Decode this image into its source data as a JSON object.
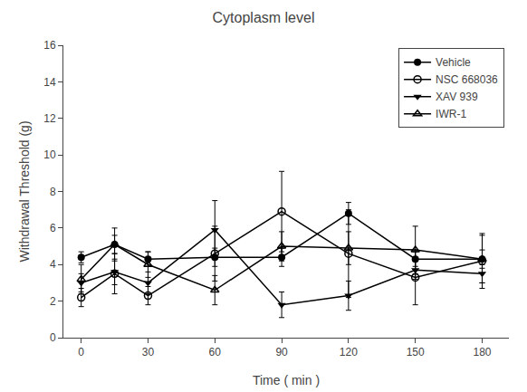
{
  "chart_data": {
    "type": "line",
    "title": "Cytoplasm level",
    "x_label": "Time ( min )",
    "y_label": "Withdrawal Threshold (g)",
    "x": [
      0,
      15,
      30,
      60,
      90,
      120,
      150,
      180
    ],
    "series": [
      {
        "name": "Vehicle",
        "color": "#000000",
        "marker": "circle",
        "values": [
          4.4,
          5.1,
          4.3,
          4.4,
          4.4,
          6.8,
          4.3,
          4.3
        ],
        "errors": [
          0.3,
          0.5,
          0.4,
          0.5,
          0.5,
          0.6,
          0.4,
          0.5
        ]
      },
      {
        "name": "NSC 668036",
        "color": "#000000",
        "marker": "circle-open",
        "values": [
          2.2,
          3.5,
          2.3,
          4.6,
          6.9,
          4.6,
          3.3,
          4.2
        ],
        "errors": [
          0.5,
          1.1,
          0.5,
          1.5,
          2.2,
          2.4,
          1.5,
          1.5
        ]
      },
      {
        "name": "XAV 939",
        "color": "#000000",
        "marker": "triangle-down",
        "values": [
          3.0,
          3.6,
          3.0,
          5.9,
          1.8,
          2.3,
          3.7,
          3.5
        ],
        "errors": [
          0.5,
          0.7,
          0.6,
          1.6,
          0.7,
          0.8,
          0.5,
          0.5
        ]
      },
      {
        "name": "IWR-1",
        "color": "#000000",
        "marker": "triangle-up-open",
        "values": [
          3.2,
          5.1,
          4.0,
          2.6,
          5.0,
          4.9,
          4.8,
          4.3
        ],
        "errors": [
          0.8,
          0.9,
          0.7,
          0.8,
          0.8,
          0.9,
          1.3,
          1.3
        ]
      }
    ],
    "xlim": [
      -8,
      192
    ],
    "xticks": [
      0,
      30,
      60,
      90,
      120,
      150,
      180
    ],
    "ylim": [
      0,
      16
    ],
    "yticks": [
      0,
      2,
      4,
      6,
      8,
      10,
      12,
      14,
      16
    ],
    "grid": false,
    "legend": "upper right"
  }
}
